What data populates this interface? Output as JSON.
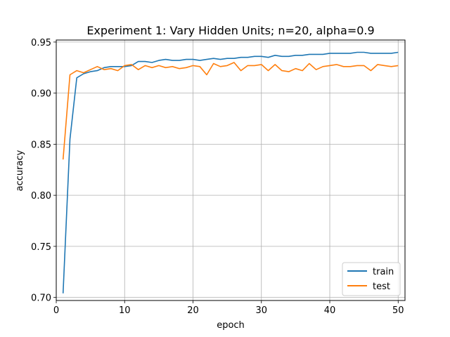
{
  "chart_data": {
    "type": "line",
    "title": "Experiment 1: Vary Hidden Units; n=20, alpha=0.9",
    "xlabel": "epoch",
    "ylabel": "accuracy",
    "xlim": [
      0,
      51
    ],
    "ylim": [
      0.697,
      0.952
    ],
    "xticks": [
      0,
      10,
      20,
      30,
      40,
      50
    ],
    "yticks": [
      0.7,
      0.75,
      0.8,
      0.85,
      0.9,
      0.95
    ],
    "grid": true,
    "legend_position": "bottom-right",
    "x": [
      1,
      2,
      3,
      4,
      5,
      6,
      7,
      8,
      9,
      10,
      11,
      12,
      13,
      14,
      15,
      16,
      17,
      18,
      19,
      20,
      21,
      22,
      23,
      24,
      25,
      26,
      27,
      28,
      29,
      30,
      31,
      32,
      33,
      34,
      35,
      36,
      37,
      38,
      39,
      40,
      41,
      42,
      43,
      44,
      45,
      46,
      47,
      48,
      49,
      50
    ],
    "series": [
      {
        "name": "train",
        "color": "#1f77b4",
        "values": [
          0.704,
          0.855,
          0.915,
          0.919,
          0.921,
          0.922,
          0.925,
          0.926,
          0.926,
          0.926,
          0.927,
          0.931,
          0.931,
          0.93,
          0.932,
          0.933,
          0.932,
          0.932,
          0.933,
          0.933,
          0.932,
          0.933,
          0.934,
          0.933,
          0.934,
          0.934,
          0.935,
          0.935,
          0.936,
          0.936,
          0.935,
          0.937,
          0.936,
          0.936,
          0.937,
          0.937,
          0.938,
          0.938,
          0.938,
          0.939,
          0.939,
          0.939,
          0.939,
          0.94,
          0.94,
          0.939,
          0.939,
          0.939,
          0.939,
          0.94
        ]
      },
      {
        "name": "test",
        "color": "#ff7f0e",
        "values": [
          0.835,
          0.918,
          0.922,
          0.92,
          0.923,
          0.926,
          0.923,
          0.924,
          0.922,
          0.927,
          0.928,
          0.923,
          0.927,
          0.925,
          0.927,
          0.925,
          0.926,
          0.924,
          0.925,
          0.927,
          0.926,
          0.918,
          0.929,
          0.926,
          0.927,
          0.93,
          0.922,
          0.927,
          0.927,
          0.928,
          0.922,
          0.928,
          0.922,
          0.921,
          0.924,
          0.922,
          0.929,
          0.923,
          0.926,
          0.927,
          0.928,
          0.926,
          0.926,
          0.927,
          0.927,
          0.922,
          0.928,
          0.927,
          0.926,
          0.927
        ]
      }
    ]
  }
}
